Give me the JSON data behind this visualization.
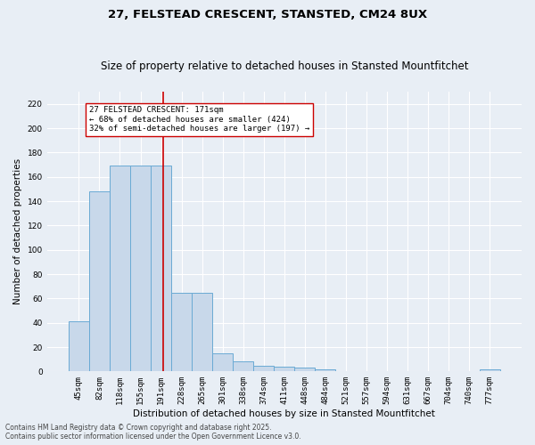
{
  "title": "27, FELSTEAD CRESCENT, STANSTED, CM24 8UX",
  "subtitle": "Size of property relative to detached houses in Stansted Mountfitchet",
  "xlabel": "Distribution of detached houses by size in Stansted Mountfitchet",
  "ylabel": "Number of detached properties",
  "categories": [
    "45sqm",
    "82sqm",
    "118sqm",
    "155sqm",
    "191sqm",
    "228sqm",
    "265sqm",
    "301sqm",
    "338sqm",
    "374sqm",
    "411sqm",
    "448sqm",
    "484sqm",
    "521sqm",
    "557sqm",
    "594sqm",
    "631sqm",
    "667sqm",
    "704sqm",
    "740sqm",
    "777sqm"
  ],
  "values": [
    41,
    148,
    169,
    169,
    169,
    65,
    65,
    15,
    8,
    5,
    4,
    3,
    2,
    0,
    0,
    0,
    0,
    0,
    0,
    0,
    2
  ],
  "bar_color": "#c8d8ea",
  "bar_edge_color": "#6aaad4",
  "bar_edge_width": 0.7,
  "ylim": [
    0,
    230
  ],
  "yticks": [
    0,
    20,
    40,
    60,
    80,
    100,
    120,
    140,
    160,
    180,
    200,
    220
  ],
  "vline_x": 4.1,
  "vline_color": "#cc0000",
  "annotation_text": "27 FELSTEAD CRESCENT: 171sqm\n← 68% of detached houses are smaller (424)\n32% of semi-detached houses are larger (197) →",
  "annotation_box_color": "#ffffff",
  "annotation_border_color": "#cc0000",
  "background_color": "#e8eef5",
  "grid_color": "#ffffff",
  "footer_text": "Contains HM Land Registry data © Crown copyright and database right 2025.\nContains public sector information licensed under the Open Government Licence v3.0.",
  "title_fontsize": 9.5,
  "subtitle_fontsize": 8.5,
  "xlabel_fontsize": 7.5,
  "ylabel_fontsize": 7.5,
  "tick_fontsize": 6.5,
  "annotation_fontsize": 6.5,
  "footer_fontsize": 5.5
}
